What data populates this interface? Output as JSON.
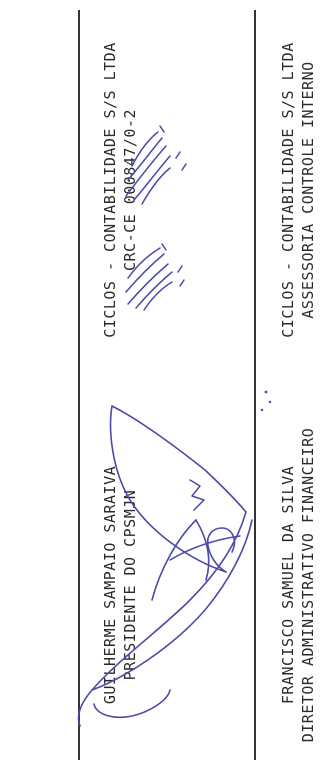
{
  "signatures": [
    {
      "name": "GUILHERME SAMPAIO SARAIVA",
      "role": "PRESIDENTE DO CPSMJN"
    },
    {
      "name": "FRANCISCO SAMUEL DA SILVA",
      "role": "DIRETOR ADMINISTRATIVO FINANCEIRO"
    },
    {
      "name": "CICLOS - CONTABILIDADE S/S LTDA",
      "role": "CRC-CE 000847/0-2"
    },
    {
      "name": "CICLOS - CONTABILIDADE S/S LTDA",
      "role": "ASSESSORIA CONTROLE INTERNO"
    }
  ],
  "colors": {
    "ink": "#4a4aa8",
    "text": "#2a2a2a",
    "rule": "#333333"
  }
}
